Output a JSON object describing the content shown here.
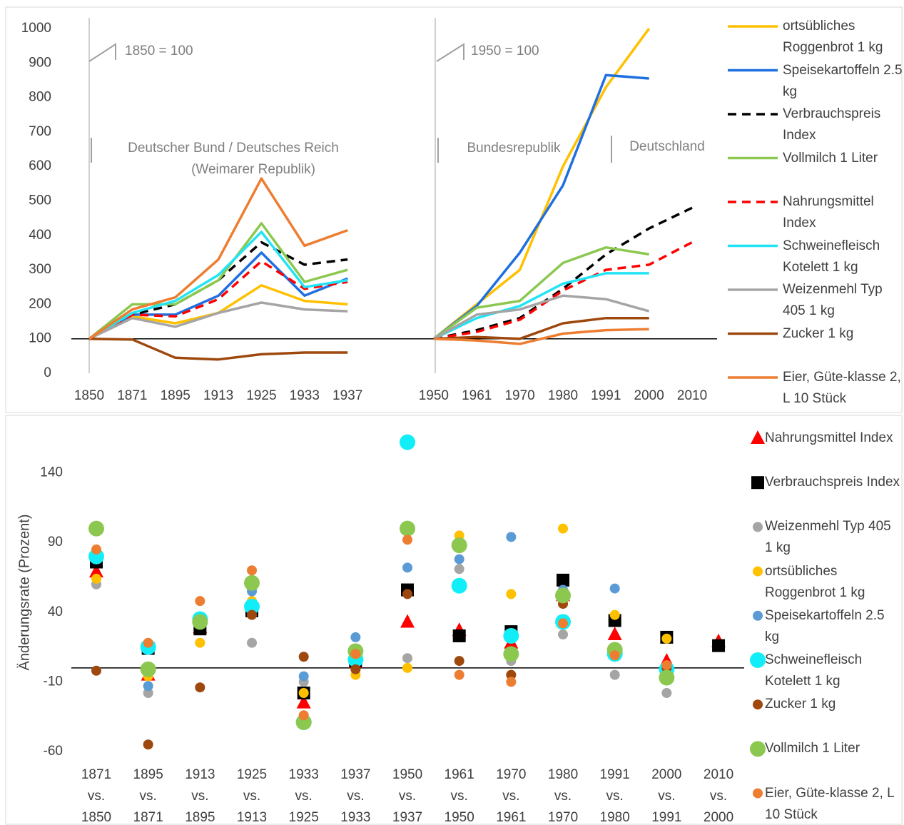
{
  "chart_data": [
    {
      "type": "line",
      "categories": [
        "1850",
        "1871",
        "1895",
        "1913",
        "1925",
        "1933",
        "1937",
        null,
        "1950",
        "1961",
        "1970",
        "1980",
        "1991",
        "2000",
        "2010"
      ],
      "ylim": [
        0,
        1000
      ],
      "yticks": [
        0,
        100,
        200,
        300,
        400,
        500,
        600,
        700,
        800,
        900,
        1000
      ],
      "baseline": 100,
      "annotations": [
        "1850 = 100",
        "1950 = 100",
        "Deutscher Bund / Deutsches Reich",
        "(Weimarer Republik)",
        "Bundesrepublik",
        "Deutschland"
      ],
      "series": [
        {
          "name": "ortsübliches Roggenbrot 1 kg",
          "color": "#FFC000",
          "dash": false,
          "values": [
            100,
            165,
            145,
            175,
            255,
            210,
            200,
            null,
            100,
            200,
            300,
            600,
            830,
            1000,
            null
          ]
        },
        {
          "name": "Speisekartoffeln 2.5 kg",
          "color": "#1F6FE0",
          "dash": false,
          "values": [
            100,
            170,
            170,
            225,
            350,
            225,
            275,
            null,
            100,
            195,
            350,
            545,
            865,
            855,
            null
          ]
        },
        {
          "name": "Verbrauchspreis Index",
          "color": "#000000",
          "dash": true,
          "values": [
            100,
            170,
            200,
            270,
            380,
            315,
            330,
            null,
            100,
            125,
            160,
            245,
            345,
            420,
            480
          ]
        },
        {
          "name": "Vollmilch 1 Liter",
          "color": "#8CC850",
          "dash": false,
          "values": [
            100,
            200,
            200,
            270,
            435,
            265,
            300,
            null,
            100,
            190,
            210,
            320,
            365,
            345,
            null
          ]
        },
        {
          "name": "Nahrungsmittel Index",
          "color": "#FF0000",
          "dash": true,
          "values": [
            100,
            170,
            165,
            215,
            325,
            245,
            265,
            null,
            100,
            120,
            155,
            240,
            300,
            315,
            380
          ]
        },
        {
          "name": "Schweinefleisch Kotelett 1 kg",
          "color": "#22E4F4",
          "dash": false,
          "values": [
            100,
            175,
            210,
            285,
            410,
            250,
            270,
            null,
            100,
            160,
            195,
            260,
            290,
            290,
            null
          ]
        },
        {
          "name": "Weizenmehl Typ 405 1 kg",
          "color": "#A5A5A5",
          "dash": false,
          "values": [
            100,
            160,
            135,
            175,
            205,
            185,
            180,
            null,
            100,
            170,
            185,
            225,
            215,
            180,
            null
          ]
        },
        {
          "name": "Zucker 1 kg",
          "color": "#9E480E",
          "dash": false,
          "values": [
            100,
            98,
            45,
            40,
            55,
            60,
            60,
            null,
            100,
            105,
            100,
            145,
            160,
            160,
            null
          ]
        },
        {
          "name": "Eier, Güte-klasse 2, L 10 Stück",
          "color": "#ED7D31",
          "dash": false,
          "values": [
            100,
            185,
            220,
            330,
            565,
            370,
            415,
            null,
            100,
            95,
            85,
            115,
            125,
            128,
            null
          ]
        }
      ]
    },
    {
      "type": "scatter",
      "y_label": "Änderungsrate (Prozent)",
      "categories": [
        "1871 vs. 1850",
        "1895 vs. 1871",
        "1913 vs. 1895",
        "1925 vs. 1913",
        "1933 vs. 1925",
        "1937 vs. 1933",
        "1950 vs. 1937",
        "1961 vs. 1950",
        "1970 vs. 1961",
        "1980 vs. 1970",
        "1991 vs. 1980",
        "2000 vs. 1991",
        "2010 vs. 2000"
      ],
      "ylim": [
        -60,
        170
      ],
      "yticks": [
        -60,
        -10,
        40,
        90,
        140
      ],
      "baseline": 0,
      "series": [
        {
          "name": "Nahrungsmittel Index",
          "color": "#FF0000",
          "marker": "triangle",
          "values": [
            69,
            -5,
            29,
            46,
            -25,
            4,
            33,
            27,
            18,
            52,
            24,
            5,
            19
          ]
        },
        {
          "name": "Verbrauchspreis Index",
          "color": "#000000",
          "marker": "square",
          "values": [
            76,
            14,
            28,
            41,
            -18,
            5,
            56,
            23,
            26,
            63,
            34,
            22,
            16
          ]
        },
        {
          "name": "Weizenmehl Typ 405 1 kg",
          "color": "#A5A5A5",
          "marker": "circle",
          "values": [
            60,
            -18,
            33,
            18,
            -10,
            7,
            7,
            71,
            5,
            24,
            -5,
            -18,
            null
          ]
        },
        {
          "name": "ortsübliches Roggenbrot 1 kg",
          "color": "#FFC000",
          "marker": "circle",
          "values": [
            64,
            -6,
            18,
            48,
            -18,
            -5,
            0,
            95,
            53,
            100,
            38,
            21,
            null
          ]
        },
        {
          "name": "Speisekartoffeln 2.5 kg",
          "color": "#5B9BD5",
          "marker": "circle",
          "values": [
            79,
            -13,
            31,
            55,
            -6,
            22,
            72,
            78,
            94,
            56,
            57,
            -1,
            null
          ]
        },
        {
          "name": "Schweinefleisch Kotelett 1 kg",
          "color": "#11EEF8",
          "marker": "big-circle",
          "values": [
            80,
            15,
            35,
            44,
            -39,
            6,
            162,
            59,
            23,
            33,
            10,
            -1,
            null
          ]
        },
        {
          "name": "Zucker 1 kg",
          "color": "#9E480E",
          "marker": "circle",
          "values": [
            -2,
            -55,
            -14,
            38,
            8,
            -1,
            53,
            5,
            -5,
            46,
            10,
            0,
            null
          ]
        },
        {
          "name": "Vollmilch 1 Liter",
          "color": "#8CC850",
          "marker": "big-circle",
          "values": [
            100,
            -1,
            33,
            61,
            -39,
            12,
            100,
            88,
            10,
            52,
            13,
            -7,
            null
          ]
        },
        {
          "name": "Eier, Güte-klasse 2, L 10 Stück",
          "color": "#ED7D31",
          "marker": "circle",
          "values": [
            85,
            18,
            48,
            70,
            -34,
            10,
            92,
            -5,
            -10,
            32,
            9,
            2,
            null
          ]
        }
      ]
    }
  ]
}
